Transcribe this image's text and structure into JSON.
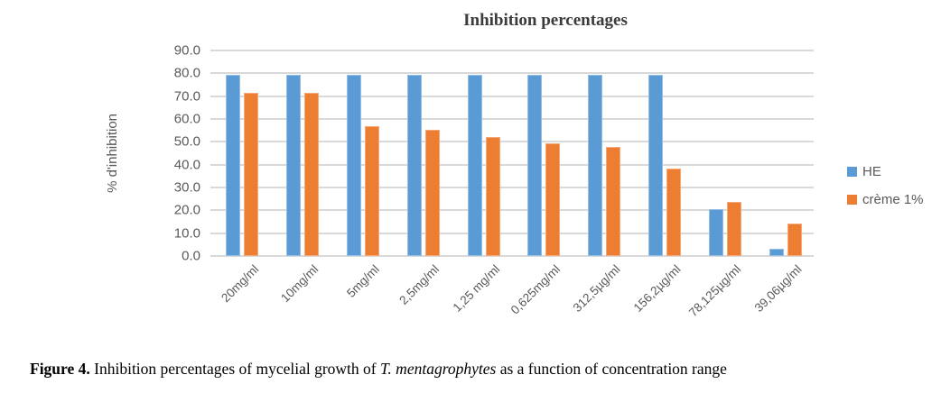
{
  "title": "Inhibition percentages",
  "y_axis_title": "% d'inhibition",
  "caption": {
    "figure_label": "Figure 4.",
    "text_before_species": " Inhibition percentages of mycelial growth of ",
    "species": "T. mentagrophytes",
    "text_after_species": " as a function of concentration range"
  },
  "chart_data": {
    "type": "bar",
    "title": "Inhibition percentages",
    "xlabel": "",
    "ylabel": "% d'inhibition",
    "ylim": [
      0,
      90
    ],
    "ytick_labels": [
      "0.0",
      "10.0",
      "20.0",
      "30.0",
      "40.0",
      "50.0",
      "60.0",
      "70.0",
      "80.0",
      "90.0"
    ],
    "grid": "horizontal",
    "gridline_color": "#d9d9d9",
    "legend_position": "right",
    "axis_text_color": "#595959",
    "categories": [
      "20mg/ml",
      "10mg/ml",
      "5mg/ml",
      "2,5mg/ml",
      "1,25 mg/ml",
      "0,625mg/ml",
      "312,5µg/ml",
      "156,2µg/ml",
      "78,125µg/ml",
      "39,06µg/ml"
    ],
    "series": [
      {
        "name": "HE",
        "color": "#5B9BD5",
        "values": [
          79.5,
          79.5,
          79.5,
          79.5,
          79.5,
          79.5,
          79.5,
          79.5,
          20.5,
          3.2
        ]
      },
      {
        "name": "crème 1%",
        "color": "#ED7D31",
        "values": [
          71.5,
          71.5,
          56.7,
          55.3,
          52.1,
          49.4,
          47.7,
          38.1,
          23.8,
          14.3
        ]
      }
    ]
  }
}
